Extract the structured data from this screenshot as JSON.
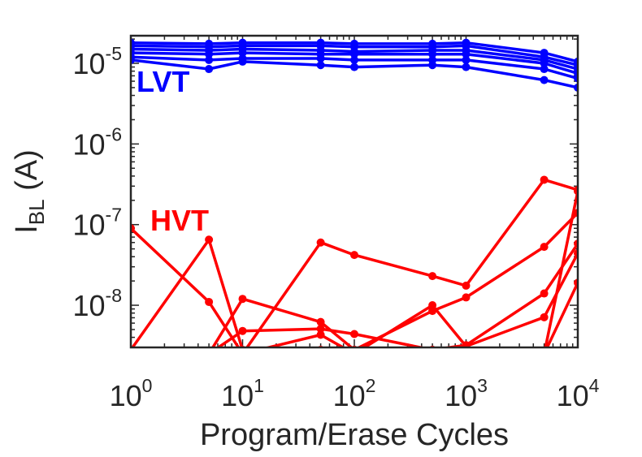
{
  "chart_data": {
    "type": "line",
    "xlabel": "Program/Erase Cycles",
    "ylabel_main": "I",
    "ylabel_sub": "BL",
    "ylabel_unit": " (A)",
    "x_scale": "log",
    "y_scale": "log",
    "xlim": [
      1,
      10000
    ],
    "ylim": [
      3e-09,
      2.2e-05
    ],
    "x_ticks": [
      1,
      10,
      100,
      1000,
      10000
    ],
    "y_ticks": [
      1e-08,
      1e-07,
      1e-06,
      1e-05
    ],
    "x_tick_labels": [
      {
        "base": "10",
        "exp": "0"
      },
      {
        "base": "10",
        "exp": "1"
      },
      {
        "base": "10",
        "exp": "2"
      },
      {
        "base": "10",
        "exp": "3"
      },
      {
        "base": "10",
        "exp": "4"
      }
    ],
    "y_tick_labels": [
      {
        "base": "10",
        "exp": "-8"
      },
      {
        "base": "10",
        "exp": "-7"
      },
      {
        "base": "10",
        "exp": "-6"
      },
      {
        "base": "10",
        "exp": "-5"
      }
    ],
    "x": [
      1,
      5,
      10,
      50,
      100,
      500,
      1000,
      5000,
      10000
    ],
    "groups": [
      {
        "label": "LVT",
        "color": "#0000ff",
        "series": [
          {
            "values": [
              1.8e-05,
              1.75e-05,
              1.8e-05,
              1.8e-05,
              1.75e-05,
              1.75e-05,
              1.8e-05,
              1.35e-05,
              1.05e-05
            ]
          },
          {
            "values": [
              1.65e-05,
              1.6e-05,
              1.65e-05,
              1.65e-05,
              1.6e-05,
              1.6e-05,
              1.65e-05,
              1.2e-05,
              9.5e-06
            ]
          },
          {
            "values": [
              1.5e-05,
              1.45e-05,
              1.5e-05,
              1.45e-05,
              1.4e-05,
              1.45e-05,
              1.45e-05,
              1.1e-05,
              8.5e-06
            ]
          },
          {
            "values": [
              1.35e-05,
              1.3e-05,
              1.35e-05,
              1.3e-05,
              1.3e-05,
              1.3e-05,
              1.3e-05,
              1e-05,
              7.5e-06
            ]
          },
          {
            "values": [
              1.2e-05,
              1.1e-05,
              1.15e-05,
              1.15e-05,
              1.1e-05,
              1.1e-05,
              1.1e-05,
              8.5e-06,
              6.5e-06
            ]
          },
          {
            "values": [
              1.1e-05,
              8.5e-06,
              1.05e-05,
              9.5e-06,
              9e-06,
              9.5e-06,
              9e-06,
              6.2e-06,
              5e-06
            ]
          }
        ]
      },
      {
        "label": "HVT",
        "color": "#ff0000",
        "series": [
          {
            "values": [
              9e-08,
              1.1e-08,
              2.5e-09,
              6e-08,
              4.2e-08,
              2.3e-08,
              1.75e-08,
              3.6e-07,
              2.7e-07
            ]
          },
          {
            "values": [
              2.8e-09,
              6.5e-08,
              2.8e-09,
              2.8e-09,
              2.8e-09,
              2.8e-09,
              2.8e-09,
              2.5e-09,
              2.6e-07
            ]
          },
          {
            "values": [
              2.5e-09,
              2.5e-09,
              1.2e-08,
              6.2e-09,
              2.8e-09,
              8.5e-09,
              1.25e-08,
              5.3e-08,
              1.4e-07
            ]
          },
          {
            "values": [
              2.5e-09,
              2.5e-09,
              4.8e-09,
              5.1e-09,
              4.4e-09,
              2.8e-09,
              3.2e-09,
              1.4e-08,
              5.8e-08
            ]
          },
          {
            "values": [
              2.5e-09,
              2.5e-09,
              2.5e-09,
              4.3e-09,
              2.5e-09,
              1e-08,
              3.1e-09,
              7.1e-09,
              4.4e-08
            ]
          },
          {
            "values": [
              2.5e-09,
              2.5e-09,
              2.5e-09,
              2.5e-09,
              2.5e-09,
              2.5e-09,
              2.5e-09,
              2.5e-09,
              1.9e-08
            ]
          }
        ]
      }
    ]
  }
}
